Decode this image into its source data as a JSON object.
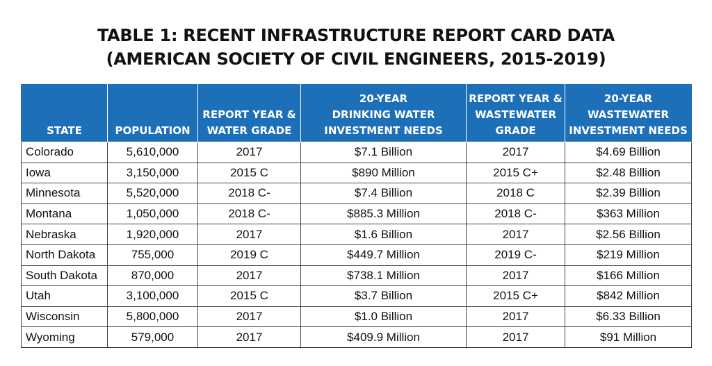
{
  "title": {
    "line1": "TABLE 1: RECENT INFRASTRUCTURE REPORT CARD DATA",
    "line2": "(AMERICAN SOCIETY OF CIVIL ENGINEERS, 2015-2019)"
  },
  "headers": [
    [
      "STATE"
    ],
    [
      "POPULATION"
    ],
    [
      "REPORT YEAR &",
      "WATER GRADE"
    ],
    [
      "20-YEAR",
      "DRINKING WATER",
      "INVESTMENT NEEDS"
    ],
    [
      "REPORT YEAR &",
      "WASTEWATER",
      "GRADE"
    ],
    [
      "20-YEAR",
      "WASTEWATER",
      "INVESTMENT NEEDS"
    ]
  ],
  "rows": [
    [
      "Colorado",
      "5,610,000",
      "2017",
      "$7.1 Billion",
      "2017",
      "$4.69 Billion"
    ],
    [
      "Iowa",
      "3,150,000",
      "2015 C",
      "$890 Million",
      "2015 C+",
      "$2.48 Billion"
    ],
    [
      "Minnesota",
      "5,520,000",
      "2018 C-",
      "$7.4 Billion",
      "2018 C",
      "$2.39 Billion"
    ],
    [
      "Montana",
      "1,050,000",
      "2018 C-",
      "$885.3 Million",
      "2018 C-",
      "$363 Million"
    ],
    [
      "Nebraska",
      "1,920,000",
      "2017",
      "$1.6 Billion",
      "2017",
      "$2.56 Billion"
    ],
    [
      "North Dakota",
      "755,000",
      "2019 C",
      "$449.7 Million",
      "2019 C-",
      "$219 Million"
    ],
    [
      "South Dakota",
      "870,000",
      "2017",
      "$738.1 Million",
      "2017",
      "$166 Million"
    ],
    [
      "Utah",
      "3,100,000",
      "2015 C",
      "$3.7 Billion",
      "2015 C+",
      "$842 Million"
    ],
    [
      "Wisconsin",
      "5,800,000",
      "2017",
      "$1.0 Billion",
      "2017",
      "$6.33 Billion"
    ],
    [
      "Wyoming",
      "579,000",
      "2017",
      "$409.9 Million",
      "2017",
      "$91 Million"
    ]
  ],
  "colors": {
    "header_bg": "#1d70b7",
    "header_text": "#ffffff",
    "border": "#444444"
  }
}
